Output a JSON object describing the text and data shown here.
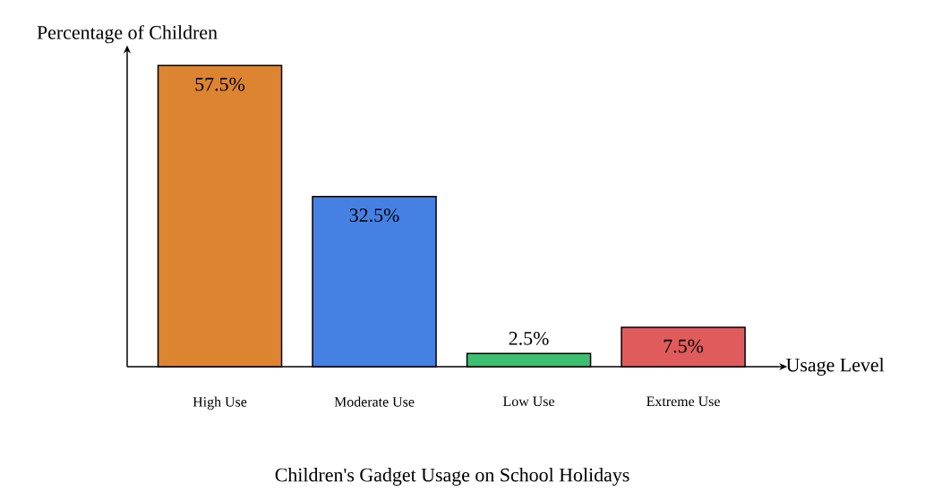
{
  "chart_data": {
    "type": "bar",
    "title": "Children's Gadget Usage on School Holidays",
    "xlabel": "Usage Level",
    "ylabel": "Percentage of Children",
    "categories": [
      "High Use",
      "Moderate Use",
      "Low Use",
      "Extreme Use"
    ],
    "values": [
      57.5,
      32.5,
      2.5,
      7.5
    ],
    "value_labels": [
      "57.5%",
      "32.5%",
      "2.5%",
      "7.5%"
    ],
    "colors": [
      "#dd8430",
      "#4580e3",
      "#3dbf72",
      "#e05c5c"
    ],
    "relative": false
  }
}
